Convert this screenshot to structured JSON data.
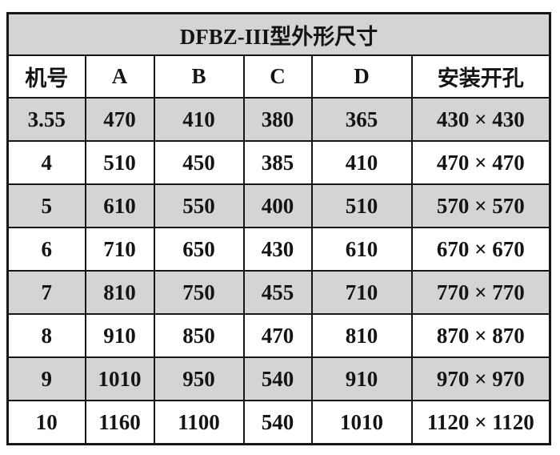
{
  "table": {
    "title": "DFBZ-III型外形尺寸",
    "columns": [
      "机号",
      "A",
      "B",
      "C",
      "D",
      "安装开孔"
    ],
    "rows": [
      [
        "3.55",
        "470",
        "410",
        "380",
        "365",
        "430 × 430"
      ],
      [
        "4",
        "510",
        "450",
        "385",
        "410",
        "470 × 470"
      ],
      [
        "5",
        "610",
        "550",
        "400",
        "510",
        "570 × 570"
      ],
      [
        "6",
        "710",
        "650",
        "430",
        "610",
        "670 × 670"
      ],
      [
        "7",
        "810",
        "750",
        "455",
        "710",
        "770 × 770"
      ],
      [
        "8",
        "910",
        "850",
        "470",
        "810",
        "870 × 870"
      ],
      [
        "9",
        "1010",
        "950",
        "540",
        "910",
        "970 × 970"
      ],
      [
        "10",
        "1160",
        "1100",
        "540",
        "1010",
        "1120 × 1120"
      ]
    ],
    "shading": "first data row shaded, then alternating",
    "colors": {
      "shaded_row_background": "#d4d4d4",
      "plain_row_background": "#ffffff",
      "grid_border": "#161616",
      "text": "#141414",
      "page_background": "#ffffff"
    }
  }
}
